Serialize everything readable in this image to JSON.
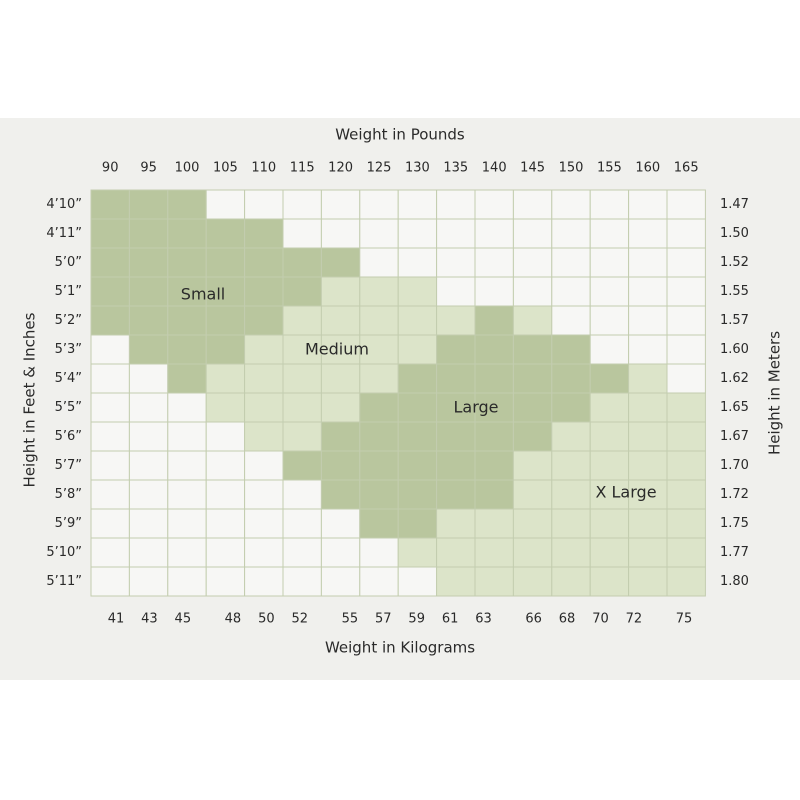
{
  "top_axis": {
    "title": "Weight in Pounds",
    "labels": [
      90,
      95,
      100,
      105,
      110,
      115,
      120,
      125,
      130,
      135,
      140,
      145,
      150,
      155,
      160,
      165
    ]
  },
  "bottom_axis": {
    "title": "Weight in Kilograms",
    "labels": [
      41,
      43,
      45,
      48,
      50,
      52,
      55,
      57,
      59,
      61,
      63,
      66,
      68,
      70,
      72,
      75
    ]
  },
  "left_axis": {
    "title": "Height in Feet & Inches",
    "labels": [
      "4’10”",
      "4’11”",
      "5’0”",
      "5’1”",
      "5’2”",
      "5’3”",
      "5’4”",
      "5’5”",
      "5’6”",
      "5’7”",
      "5’8”",
      "5’9”",
      "5’10”",
      "5’11”"
    ]
  },
  "right_axis": {
    "title": "Height in Meters",
    "labels": [
      "1.47",
      "1.50",
      "1.52",
      "1.55",
      "1.57",
      "1.60",
      "1.62",
      "1.65",
      "1.67",
      "1.70",
      "1.72",
      "1.75",
      "1.77",
      "1.80"
    ]
  },
  "regions": [
    {
      "label": "Small"
    },
    {
      "label": "Medium"
    },
    {
      "label": "Large"
    },
    {
      "label": "X Large"
    }
  ]
}
